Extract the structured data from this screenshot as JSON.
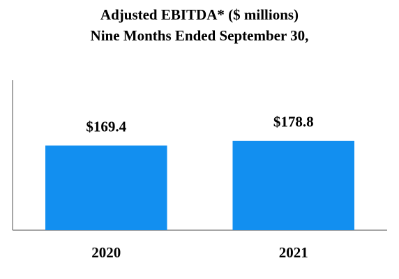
{
  "chart_data": {
    "type": "bar",
    "title": [
      "Adjusted EBITDA* ($ millions)",
      "Nine Months Ended September 30,"
    ],
    "categories": [
      "2020",
      "2021"
    ],
    "values": [
      169.4,
      178.8
    ],
    "value_labels": [
      "$169.4",
      "$178.8"
    ],
    "color": "#128ff0",
    "ylim": [
      0,
      300
    ]
  }
}
